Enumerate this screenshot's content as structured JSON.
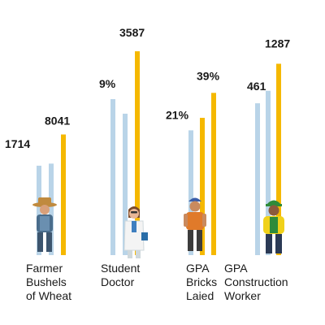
{
  "chart_data": {
    "type": "bar",
    "colors": {
      "light": "#b9d4e8",
      "accent": "#f5b800"
    },
    "groups": [
      {
        "label_lines": [
          "Farmer",
          "Bushels",
          "of Wheat"
        ],
        "value_labels": [
          "1714",
          "8041"
        ],
        "bars": [
          {
            "color": "light",
            "value": 0.43
          },
          {
            "color": "light",
            "value": 0.44
          },
          {
            "color": "accent",
            "value": 0.58
          }
        ],
        "figure_icon": "farmer-icon"
      },
      {
        "label_lines": [
          "Student",
          "Doctor"
        ],
        "value_labels": [
          "9%",
          "3587"
        ],
        "bars": [
          {
            "color": "light",
            "value": 0.75
          },
          {
            "color": "light",
            "value": 0.68
          },
          {
            "color": "accent",
            "value": 0.98
          }
        ],
        "figure_icon": "doctor-icon"
      },
      {
        "label_lines": [
          "GPA",
          "Bricks",
          "Laied"
        ],
        "value_labels": [
          "21%",
          "39%"
        ],
        "bars": [
          {
            "color": "light",
            "value": 0.6
          },
          {
            "color": "accent",
            "value": 0.66
          },
          {
            "color": "accent",
            "value": 0.78
          }
        ],
        "figure_icon": "bricklayer-icon"
      },
      {
        "label_lines": [
          "GPA",
          "Construction",
          "Worker"
        ],
        "value_labels": [
          "461",
          "1287"
        ],
        "bars": [
          {
            "color": "light",
            "value": 0.73
          },
          {
            "color": "light",
            "value": 0.79
          },
          {
            "color": "accent",
            "value": 0.92
          }
        ],
        "figure_icon": "construction-worker-icon"
      }
    ]
  }
}
